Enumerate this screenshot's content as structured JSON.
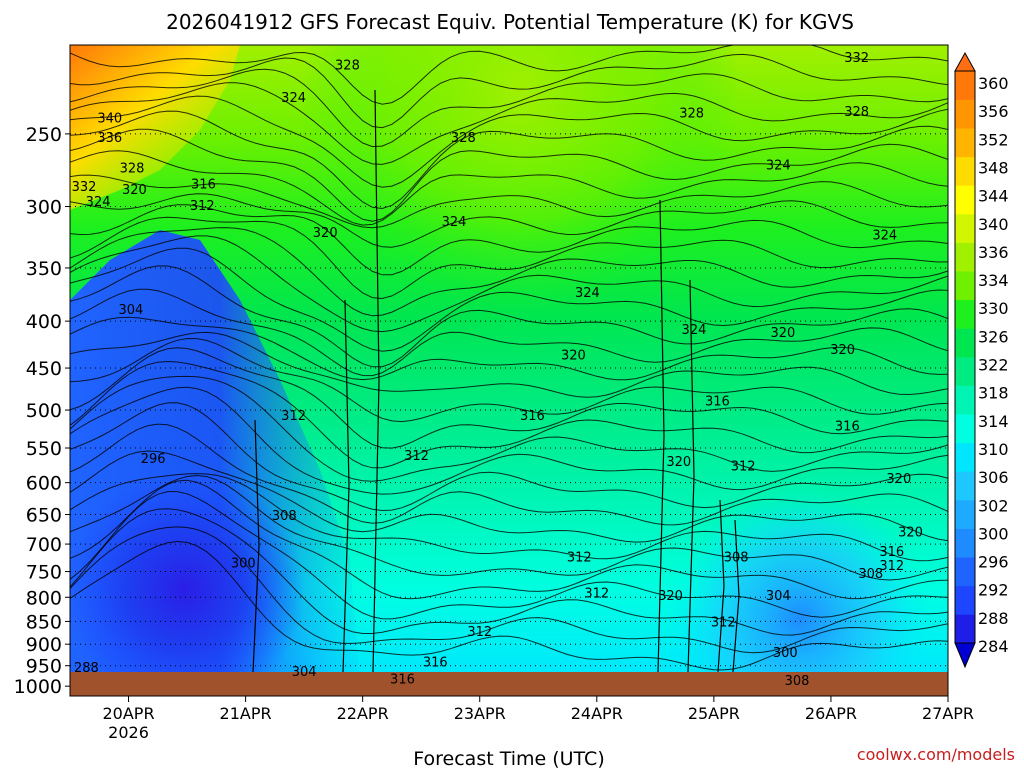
{
  "chart_data": {
    "type": "heatmap",
    "title": "2026041912 GFS Forecast Equiv. Potential Temperature (K) for KGVS",
    "xlabel": "Forecast Time (UTC)",
    "ylabel": "",
    "x_ticks": [
      {
        "label": "20APR",
        "sub": "2026",
        "day": 0
      },
      {
        "label": "21APR",
        "sub": "",
        "day": 1
      },
      {
        "label": "22APR",
        "sub": "",
        "day": 2
      },
      {
        "label": "23APR",
        "sub": "",
        "day": 3
      },
      {
        "label": "24APR",
        "sub": "",
        "day": 4
      },
      {
        "label": "25APR",
        "sub": "",
        "day": 5
      },
      {
        "label": "26APR",
        "sub": "",
        "day": 6
      },
      {
        "label": "27APR",
        "sub": "",
        "day": 7
      }
    ],
    "xlim_days": [
      -0.5,
      7
    ],
    "y_ticks": [
      250,
      300,
      350,
      400,
      450,
      500,
      550,
      600,
      650,
      700,
      750,
      800,
      850,
      900,
      950,
      1000
    ],
    "ylim_hpa": [
      1025,
      200
    ],
    "colorbar_levels": [
      284,
      288,
      292,
      296,
      300,
      302,
      306,
      310,
      314,
      318,
      322,
      326,
      330,
      334,
      336,
      340,
      344,
      348,
      352,
      356,
      360
    ],
    "colorbar_colors": [
      "#1e1ee6",
      "#1e46ff",
      "#2064ff",
      "#1e8cff",
      "#1eaaff",
      "#1ec8ff",
      "#00e6ff",
      "#00ffe1",
      "#00f5b4",
      "#00eb82",
      "#00e650",
      "#1ef01e",
      "#6ef000",
      "#a0f000",
      "#d2f500",
      "#ffff00",
      "#ffdc00",
      "#ffb400",
      "#ff9600",
      "#ff780a"
    ],
    "colorbar_under": "#0000d2",
    "colorbar_over": "#ff6e14",
    "ground_color": "#a0522d",
    "contour_labels": [
      {
        "text": "340",
        "day": -0.16,
        "p": 240
      },
      {
        "text": "336",
        "day": -0.16,
        "p": 252
      },
      {
        "text": "332",
        "day": -0.38,
        "p": 285
      },
      {
        "text": "328",
        "day": 0.03,
        "p": 272
      },
      {
        "text": "324",
        "day": -0.26,
        "p": 296
      },
      {
        "text": "320",
        "day": 0.05,
        "p": 287
      },
      {
        "text": "316",
        "day": 0.64,
        "p": 283
      },
      {
        "text": "312",
        "day": 0.63,
        "p": 299
      },
      {
        "text": "328",
        "day": 1.87,
        "p": 210
      },
      {
        "text": "324",
        "day": 1.41,
        "p": 228
      },
      {
        "text": "320",
        "day": 1.68,
        "p": 320
      },
      {
        "text": "328",
        "day": 2.86,
        "p": 252
      },
      {
        "text": "324",
        "day": 2.78,
        "p": 311
      },
      {
        "text": "324",
        "day": 3.92,
        "p": 372
      },
      {
        "text": "328",
        "day": 4.81,
        "p": 237
      },
      {
        "text": "324",
        "day": 5.55,
        "p": 270
      },
      {
        "text": "332",
        "day": 6.22,
        "p": 206
      },
      {
        "text": "328",
        "day": 6.22,
        "p": 236
      },
      {
        "text": "324",
        "day": 6.46,
        "p": 322
      },
      {
        "text": "324",
        "day": 4.83,
        "p": 408
      },
      {
        "text": "320",
        "day": 5.59,
        "p": 411
      },
      {
        "text": "320",
        "day": 6.1,
        "p": 429
      },
      {
        "text": "320",
        "day": 3.8,
        "p": 435
      },
      {
        "text": "304",
        "day": 0.02,
        "p": 388
      },
      {
        "text": "316",
        "day": 5.03,
        "p": 488
      },
      {
        "text": "316",
        "day": 3.45,
        "p": 506
      },
      {
        "text": "312",
        "day": 1.41,
        "p": 506
      },
      {
        "text": "312",
        "day": 2.46,
        "p": 560
      },
      {
        "text": "316",
        "day": 6.14,
        "p": 520
      },
      {
        "text": "320",
        "day": 4.7,
        "p": 568
      },
      {
        "text": "312",
        "day": 5.25,
        "p": 575
      },
      {
        "text": "320",
        "day": 6.58,
        "p": 593
      },
      {
        "text": "296",
        "day": 0.21,
        "p": 564
      },
      {
        "text": "308",
        "day": 1.33,
        "p": 651
      },
      {
        "text": "320",
        "day": 6.68,
        "p": 678
      },
      {
        "text": "316",
        "day": 6.52,
        "p": 712
      },
      {
        "text": "312",
        "day": 6.52,
        "p": 738
      },
      {
        "text": "308",
        "day": 6.34,
        "p": 753
      },
      {
        "text": "300",
        "day": 0.98,
        "p": 733
      },
      {
        "text": "308",
        "day": 5.19,
        "p": 722
      },
      {
        "text": "312",
        "day": 3.85,
        "p": 722
      },
      {
        "text": "312",
        "day": 4.0,
        "p": 790
      },
      {
        "text": "320",
        "day": 4.63,
        "p": 795
      },
      {
        "text": "304",
        "day": 5.55,
        "p": 795
      },
      {
        "text": "312",
        "day": 5.08,
        "p": 850
      },
      {
        "text": "312",
        "day": 3.0,
        "p": 871
      },
      {
        "text": "300",
        "day": 5.61,
        "p": 918
      },
      {
        "text": "316",
        "day": 2.62,
        "p": 940
      },
      {
        "text": "304",
        "day": 1.5,
        "p": 963
      },
      {
        "text": "316",
        "day": 2.34,
        "p": 981
      },
      {
        "text": "308",
        "day": 5.71,
        "p": 985
      },
      {
        "text": "288",
        "day": -0.36,
        "p": 953
      }
    ]
  },
  "watermark": "coolwx.com/models"
}
